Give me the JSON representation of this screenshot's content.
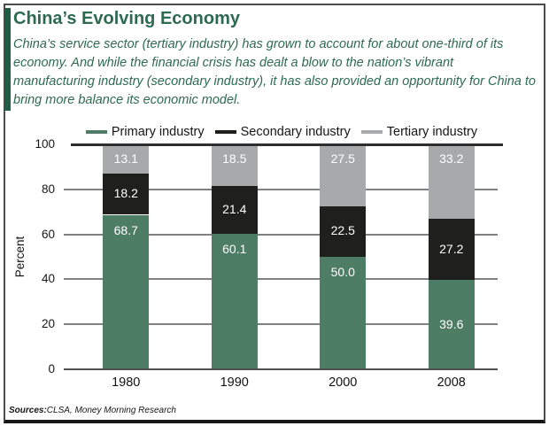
{
  "header": {
    "title": "China’s Evolving Economy",
    "intro": "China’s service sector (tertiary industry) has grown to account for about one-third of its economy. And while the financial crisis has dealt a blow to the nation’s vibrant manufacturing industry (secondary industry), it has also provided an opportunity for China to bring more balance its economic model."
  },
  "chart_data": {
    "type": "bar",
    "stacked": true,
    "categories": [
      "1980",
      "1990",
      "2000",
      "2008"
    ],
    "series": [
      {
        "name": "Primary industry",
        "color": "#4e7d66",
        "values": [
          68.7,
          60.1,
          50.0,
          39.6
        ]
      },
      {
        "name": "Secondary industry",
        "color": "#1f1f1d",
        "values": [
          18.2,
          21.4,
          22.5,
          27.2
        ]
      },
      {
        "name": "Tertiary industry",
        "color": "#a7a9ab",
        "values": [
          13.1,
          18.5,
          27.5,
          33.2
        ]
      }
    ],
    "xlabel": "",
    "ylabel": "Percent",
    "ylim": [
      0,
      100
    ],
    "yticks": [
      0,
      20,
      40,
      60,
      80,
      100
    ],
    "grid": true,
    "legend_position": "top",
    "value_labels": true,
    "value_label_color": "#ffffff"
  },
  "footer": {
    "source_label": "Sources:",
    "source_value": "CLSA, Money Morning Research"
  },
  "theme": {
    "heading_green": "#2d6a50",
    "accent_bar_green": "#215c44",
    "gridline_gray": "#7f8082",
    "top_rule_dark": "#2e2e2e",
    "frame_border": "#4b4c4e"
  }
}
